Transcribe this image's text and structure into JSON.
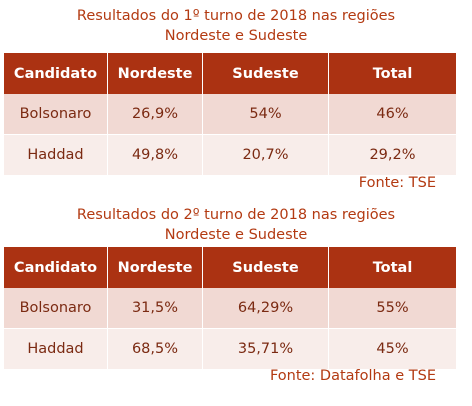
{
  "table1": {
    "title_line1": "Resultados do 1º turno de 2018 nas regiões",
    "title_line2": "Nordeste e Sudeste",
    "headers": [
      "Candidato",
      "Nordeste",
      "Sudeste",
      "Total"
    ],
    "rows": [
      [
        "Bolsonaro",
        "26,9%",
        "54%",
        "46%"
      ],
      [
        "Haddad",
        "49,8%",
        "20,7%",
        "29,2%"
      ]
    ],
    "source": "Fonte: TSE"
  },
  "table2": {
    "title_line1": "Resultados do 2º turno de 2018 nas regiões",
    "title_line2": "Nordeste e Sudeste",
    "headers": [
      "Candidato",
      "Nordeste",
      "Sudeste",
      "Total"
    ],
    "rows": [
      [
        "Bolsonaro",
        "31,5%",
        "64,29%",
        "55%"
      ],
      [
        "Haddad",
        "68,5%",
        "35,71%",
        "45%"
      ]
    ],
    "source": "Fonte: Datafolha e TSE"
  }
}
